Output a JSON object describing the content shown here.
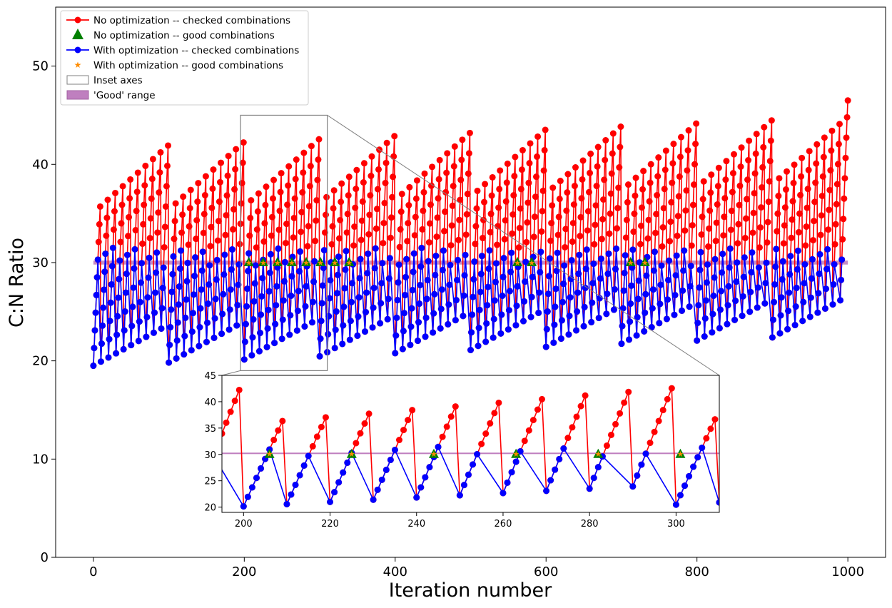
{
  "chart_data": {
    "type": "line",
    "xlabel": "Iteration number",
    "ylabel": "C:N Ratio",
    "xlim": [
      -50,
      1050
    ],
    "ylim": [
      0,
      56
    ],
    "xticks": [
      0,
      200,
      400,
      600,
      800,
      1000
    ],
    "yticks": [
      0,
      10,
      20,
      30,
      40,
      50
    ],
    "grid": false,
    "legend_position": "top-left",
    "good_range": [
      29.8,
      30.2
    ],
    "colors": {
      "no_opt": "#ff0000",
      "with_opt": "#0000ff",
      "good_no_opt": "#008000",
      "good_with_opt": "#ff8c00",
      "range": "#bf7fbf",
      "inset_frame": "#808080"
    },
    "legend": [
      {
        "label": "No optimization -- checked combinations",
        "marker": "line-dot",
        "color": "#ff0000"
      },
      {
        "label": "No optimization -- good combinations",
        "marker": "triangle",
        "color": "#008000"
      },
      {
        "label": "With optimization -- checked combinations",
        "marker": "line-dot",
        "color": "#0000ff"
      },
      {
        "label": "With optimization -- good combinations",
        "marker": "star",
        "color": "#ff8c00"
      },
      {
        "label": "Inset axes",
        "marker": "box",
        "color": "#808080"
      },
      {
        "label": "'Good' range",
        "marker": "patch",
        "color": "#bf7fbf"
      }
    ],
    "series_no_optimization": {
      "x_start": 0,
      "x_end": 1000,
      "x_step": 1,
      "cycle_length": 100,
      "sub_cycle_length": 10,
      "first_sub_cycle_start": 19.5,
      "first_sub_cycle_step": 1.8,
      "cycle_start_increment": 0.32,
      "sub_cycle_start_increment": 0.42,
      "last_cycle_max": 46.5
    },
    "series_with_optimization": {
      "target": 30,
      "points_per_sub_cycle_until": 31.5
    },
    "good_points_no_optimization": [
      {
        "x": 206,
        "y": 30
      },
      {
        "x": 225,
        "y": 30
      },
      {
        "x": 244,
        "y": 30
      },
      {
        "x": 263,
        "y": 30
      },
      {
        "x": 282,
        "y": 30
      },
      {
        "x": 301,
        "y": 30
      },
      {
        "x": 320,
        "y": 30
      },
      {
        "x": 339,
        "y": 30
      },
      {
        "x": 562,
        "y": 30
      },
      {
        "x": 581,
        "y": 30
      },
      {
        "x": 712,
        "y": 30
      },
      {
        "x": 731,
        "y": 30
      }
    ],
    "inset": {
      "xlim": [
        195,
        310
      ],
      "ylim": [
        19,
        45
      ],
      "xticks": [
        200,
        220,
        240,
        260,
        280,
        300
      ],
      "yticks": [
        20,
        25,
        30,
        35,
        40,
        45
      ],
      "zoom_box": {
        "x0": 195,
        "x1": 310,
        "y0": 19,
        "y1": 45
      }
    }
  }
}
